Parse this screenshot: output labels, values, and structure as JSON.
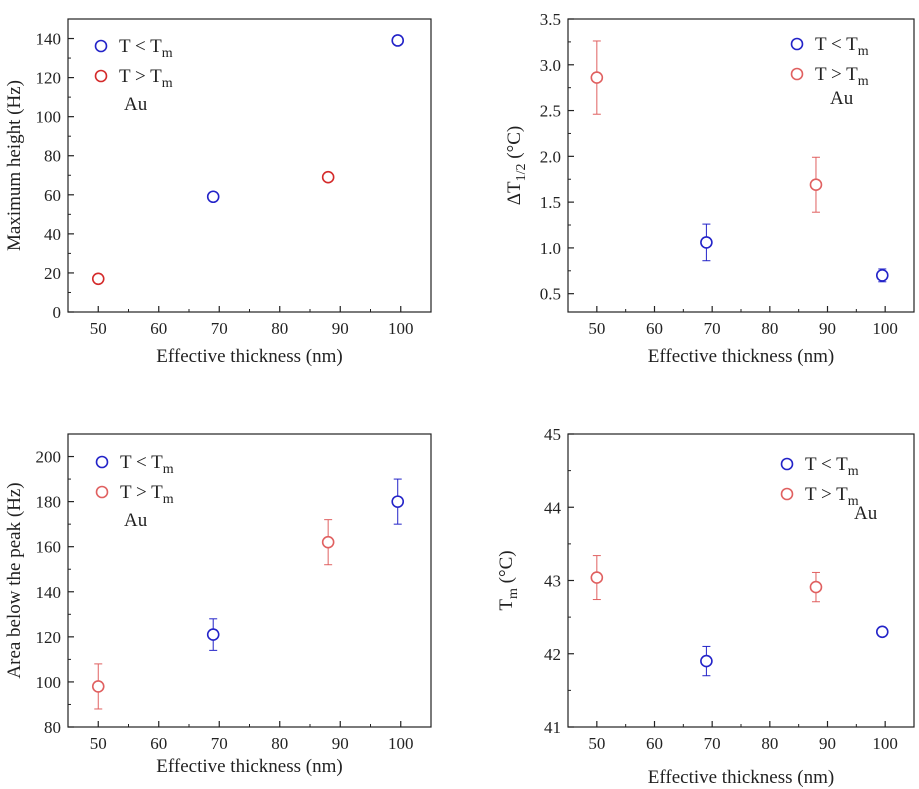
{
  "chart_data": [
    {
      "type": "scatter",
      "xlabel": "Effective thickness (nm)",
      "ylabel": "Maximum height (Hz)",
      "ylabel_sub": "",
      "ylabel_tail": "",
      "xlim": [
        45,
        105
      ],
      "ylim": [
        0,
        150
      ],
      "xticks": [
        50,
        60,
        70,
        80,
        90,
        100
      ],
      "yticks": [
        0,
        20,
        40,
        60,
        80,
        100,
        120,
        140
      ],
      "annotation": "Au",
      "legend_position": "top-left",
      "series": [
        {
          "name": "T < T",
          "name_sub": "m",
          "color": "#2323c8",
          "x": [
            69,
            99.5
          ],
          "y": [
            59,
            139
          ],
          "err": [
            0,
            0
          ]
        },
        {
          "name": "T > T",
          "name_sub": "m",
          "color": "#d42a2a",
          "x": [
            50,
            88
          ],
          "y": [
            17,
            69
          ],
          "err": [
            0,
            0
          ]
        }
      ]
    },
    {
      "type": "scatter",
      "xlabel": "Effective thickness (nm)",
      "ylabel": "ΔT",
      "ylabel_sub": "1/2",
      "ylabel_tail": " (°C)",
      "xlim": [
        45,
        105
      ],
      "ylim": [
        0.3,
        3.5
      ],
      "xticks": [
        50,
        60,
        70,
        80,
        90,
        100
      ],
      "yticks": [
        0.5,
        1.0,
        1.5,
        2.0,
        2.5,
        3.0,
        3.5
      ],
      "ytick_decimals": 1,
      "annotation": "Au",
      "legend_position": "top-right",
      "series": [
        {
          "name": "T < T",
          "name_sub": "m",
          "color": "#2323c8",
          "x": [
            69,
            99.5
          ],
          "y": [
            1.06,
            0.7
          ],
          "err": [
            0.2,
            0.07
          ]
        },
        {
          "name": "T > T",
          "name_sub": "m",
          "color": "#e06060",
          "x": [
            50,
            88
          ],
          "y": [
            2.86,
            1.69
          ],
          "err": [
            0.4,
            0.3
          ]
        }
      ]
    },
    {
      "type": "scatter",
      "xlabel": "Effective thickness (nm)",
      "ylabel": "Area below the peak (Hz)",
      "ylabel_sub": "",
      "ylabel_tail": "",
      "xlim": [
        45,
        105
      ],
      "ylim": [
        80,
        210
      ],
      "xticks": [
        50,
        60,
        70,
        80,
        90,
        100
      ],
      "yticks": [
        80,
        100,
        120,
        140,
        160,
        180,
        200
      ],
      "annotation": "Au",
      "legend_position": "top-left",
      "series": [
        {
          "name": "T < T",
          "name_sub": "m",
          "color": "#2323c8",
          "x": [
            69,
            99.5
          ],
          "y": [
            121,
            180
          ],
          "err": [
            7,
            10
          ]
        },
        {
          "name": "T > T",
          "name_sub": "m",
          "color": "#e06060",
          "x": [
            50,
            88
          ],
          "y": [
            98,
            162
          ],
          "err": [
            10,
            10
          ]
        }
      ]
    },
    {
      "type": "scatter",
      "xlabel": "Effective thickness (nm)",
      "ylabel": "T",
      "ylabel_sub": "m",
      "ylabel_tail": " (°C)",
      "xlim": [
        45,
        105
      ],
      "ylim": [
        41,
        45
      ],
      "xticks": [
        50,
        60,
        70,
        80,
        90,
        100
      ],
      "yticks": [
        41,
        42,
        43,
        44,
        45
      ],
      "annotation": "Au",
      "legend_position": "top-right",
      "series": [
        {
          "name": "T < T",
          "name_sub": "m",
          "color": "#2323c8",
          "x": [
            69,
            99.5
          ],
          "y": [
            41.9,
            42.3
          ],
          "err": [
            0.2,
            0
          ]
        },
        {
          "name": "T > T",
          "name_sub": "m",
          "color": "#e06060",
          "x": [
            50,
            88
          ],
          "y": [
            43.04,
            42.91
          ],
          "err": [
            0.3,
            0.2
          ]
        }
      ]
    }
  ]
}
